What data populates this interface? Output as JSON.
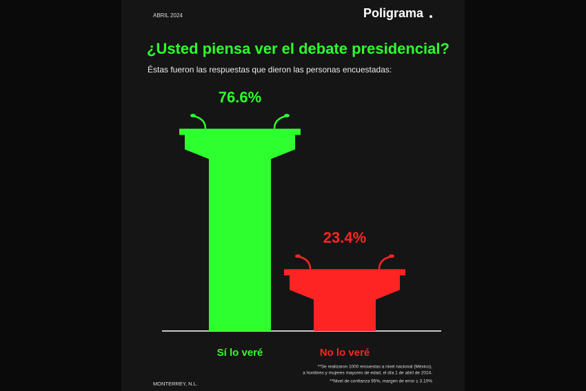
{
  "chart_data": {
    "type": "bar",
    "title": "¿Usted piensa ver el debate presidencial?",
    "subtitle": "Éstas fueron las respuestas que dieron las personas encuestadas:",
    "categories": [
      "Sí lo veré",
      "No lo veré"
    ],
    "values": [
      76.6,
      23.4
    ],
    "value_labels": [
      "76.6%",
      "23.4%"
    ],
    "colors": [
      "#2eff2e",
      "#ff2424"
    ]
  },
  "header": {
    "date": "ABRIL 2024",
    "brand": "Poligrama"
  },
  "footer": {
    "notes": [
      "**Se realizaron 1000 encuestas a nivel nacional (México),",
      "a hombres  y mujeres mayores de edad, el día 1 de abril de 2024.",
      "**Nivel de confianza 95%, margen de error ± 3.10%"
    ],
    "location": "MONTERREY, N.L."
  }
}
